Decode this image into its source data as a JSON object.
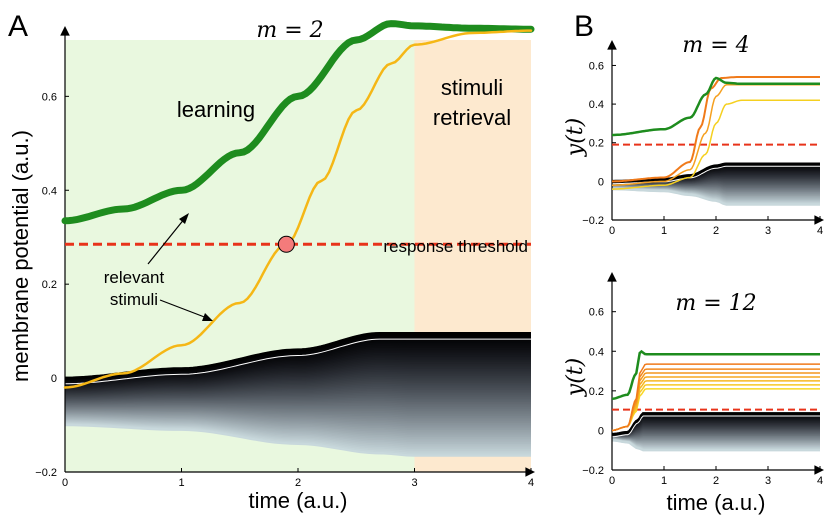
{
  "chart_data": [
    {
      "id": "A",
      "type": "line",
      "panel_label": "A",
      "title": "m = 2",
      "xlabel": "time (a.u.)",
      "ylabel": "membrane potential (a.u.)",
      "xlim": [
        0,
        4
      ],
      "ylim": [
        -0.2,
        0.72
      ],
      "xticks": [
        "0",
        "1",
        "2",
        "3",
        "4"
      ],
      "yticks": [
        "−0.2",
        "0",
        "0.2",
        "0.4",
        "0.6"
      ],
      "regions": [
        {
          "name": "learning",
          "label": "learning",
          "x_range": [
            0,
            3
          ],
          "color": "#e9f8df"
        },
        {
          "name": "stimuli retrieval",
          "label": "stimuli\nretrieval",
          "x_range": [
            3,
            4
          ],
          "color": "#fde9cf"
        }
      ],
      "threshold": {
        "value": 0.285,
        "label": "response threshold",
        "color": "#e8331a"
      },
      "crossing_point": {
        "x": 1.9,
        "y": 0.285
      },
      "annotation": {
        "label": "relevant\nstimuli"
      },
      "series": [
        {
          "name": "green relevant stimulus",
          "color": "#1e8c1e",
          "width": 7,
          "x": [
            0,
            0.5,
            1,
            1.5,
            2,
            2.5,
            2.8,
            3,
            3.5,
            4
          ],
          "y": [
            0.335,
            0.36,
            0.4,
            0.48,
            0.6,
            0.72,
            0.755,
            0.75,
            0.745,
            0.743
          ]
        },
        {
          "name": "yellow relevant stimulus",
          "color": "#f5b716",
          "width": 2.5,
          "x": [
            0,
            0.5,
            1,
            1.5,
            1.9,
            2.2,
            2.5,
            2.8,
            3,
            3.5,
            4
          ],
          "y": [
            -0.02,
            0.01,
            0.07,
            0.16,
            0.285,
            0.42,
            0.57,
            0.67,
            0.71,
            0.735,
            0.74
          ]
        },
        {
          "name": "background stimuli (top)",
          "color": "#000000",
          "width": 2,
          "x": [
            0,
            1,
            2,
            2.7,
            3,
            4
          ],
          "y": [
            0.0,
            0.02,
            0.06,
            0.095,
            0.095,
            0.095
          ]
        },
        {
          "name": "background stimuli (bottom)",
          "color": "#c8d8dc",
          "width": 2,
          "x": [
            0,
            1,
            2,
            2.7,
            3,
            4
          ],
          "y": [
            -0.1,
            -0.11,
            -0.14,
            -0.16,
            -0.165,
            -0.165
          ]
        }
      ]
    },
    {
      "id": "B_top",
      "type": "line",
      "panel_label": "B",
      "title": "m = 4",
      "xlabel": "",
      "ylabel": "y(t)",
      "xlim": [
        0,
        4
      ],
      "ylim": [
        -0.2,
        0.68
      ],
      "xticks": [
        "0",
        "1",
        "2",
        "3",
        "4"
      ],
      "yticks": [
        "−0.2",
        "0",
        "0.2",
        "0.4",
        "0.6"
      ],
      "threshold": {
        "value": 0.19,
        "color": "#e8331a"
      },
      "series": [
        {
          "name": "green",
          "color": "#1e8c1e",
          "width": 2.5,
          "x": [
            0,
            1,
            1.5,
            1.8,
            2,
            2.2,
            2.5,
            4
          ],
          "y": [
            0.24,
            0.27,
            0.33,
            0.45,
            0.535,
            0.51,
            0.505,
            0.505
          ]
        },
        {
          "name": "orange",
          "color": "#f07a1a",
          "width": 2,
          "x": [
            0,
            1,
            1.5,
            1.7,
            1.9,
            2.1,
            2.4,
            4
          ],
          "y": [
            0.0,
            0.02,
            0.1,
            0.28,
            0.48,
            0.535,
            0.54,
            0.54
          ]
        },
        {
          "name": "amber",
          "color": "#f5a020",
          "width": 1.5,
          "x": [
            0,
            1,
            1.5,
            1.8,
            2,
            2.2,
            2.5,
            4
          ],
          "y": [
            -0.02,
            0.0,
            0.06,
            0.25,
            0.44,
            0.5,
            0.5,
            0.5
          ]
        },
        {
          "name": "yellow",
          "color": "#f5d020",
          "width": 1.5,
          "x": [
            0,
            1,
            1.5,
            1.8,
            2,
            2.2,
            2.5,
            4
          ],
          "y": [
            -0.04,
            -0.02,
            0.02,
            0.14,
            0.3,
            0.4,
            0.42,
            0.42
          ]
        },
        {
          "name": "background top",
          "color": "#000000",
          "width": 2,
          "x": [
            0,
            1,
            1.5,
            2,
            2.2,
            4
          ],
          "y": [
            0.0,
            0.01,
            0.03,
            0.08,
            0.09,
            0.09
          ]
        },
        {
          "name": "background bottom",
          "color": "#c8d8dc",
          "width": 2,
          "x": [
            0,
            1,
            1.5,
            2,
            2.2,
            4
          ],
          "y": [
            -0.04,
            -0.05,
            -0.07,
            -0.1,
            -0.12,
            -0.12
          ]
        }
      ]
    },
    {
      "id": "B_bottom",
      "type": "line",
      "panel_label": "",
      "title": "m = 12",
      "xlabel": "time (a.u.)",
      "ylabel": "y(t)",
      "xlim": [
        0,
        4
      ],
      "ylim": [
        -0.2,
        0.75
      ],
      "xticks": [
        "0",
        "1",
        "2",
        "3",
        "4"
      ],
      "yticks": [
        "−0.2",
        "0",
        "0.2",
        "0.4",
        "0.6"
      ],
      "threshold": {
        "value": 0.105,
        "color": "#e8331a"
      },
      "series": [
        {
          "name": "green",
          "color": "#1e8c1e",
          "width": 2.5,
          "x": [
            0,
            0.3,
            0.45,
            0.55,
            0.65,
            1,
            4
          ],
          "y": [
            0.16,
            0.18,
            0.28,
            0.4,
            0.385,
            0.385,
            0.385
          ]
        },
        {
          "name": "stimulus 1",
          "color": "#f07a1a",
          "width": 1.5,
          "x": [
            0,
            0.3,
            0.45,
            0.55,
            0.65,
            4
          ],
          "y": [
            0.0,
            0.02,
            0.15,
            0.3,
            0.335,
            0.335
          ]
        },
        {
          "name": "stimulus 2",
          "color": "#f2881c",
          "width": 1.5,
          "x": [
            0,
            0.3,
            0.45,
            0.55,
            0.65,
            4
          ],
          "y": [
            0.0,
            0.02,
            0.14,
            0.28,
            0.31,
            0.31
          ]
        },
        {
          "name": "stimulus 3",
          "color": "#f3971e",
          "width": 1.5,
          "x": [
            0,
            0.3,
            0.45,
            0.55,
            0.65,
            4
          ],
          "y": [
            0.0,
            0.02,
            0.13,
            0.26,
            0.29,
            0.29
          ]
        },
        {
          "name": "stimulus 4",
          "color": "#f5a820",
          "width": 1.5,
          "x": [
            0,
            0.3,
            0.45,
            0.55,
            0.65,
            4
          ],
          "y": [
            0.0,
            0.02,
            0.12,
            0.24,
            0.27,
            0.27
          ]
        },
        {
          "name": "stimulus 5",
          "color": "#f6b822",
          "width": 1.5,
          "x": [
            0,
            0.3,
            0.45,
            0.55,
            0.65,
            4
          ],
          "y": [
            0.0,
            0.02,
            0.11,
            0.22,
            0.25,
            0.25
          ]
        },
        {
          "name": "stimulus 6",
          "color": "#f7c824",
          "width": 1.5,
          "x": [
            0,
            0.3,
            0.45,
            0.55,
            0.65,
            4
          ],
          "y": [
            0.0,
            0.02,
            0.1,
            0.2,
            0.23,
            0.23
          ]
        },
        {
          "name": "stimulus 7",
          "color": "#f8d726",
          "width": 1.5,
          "x": [
            0,
            0.3,
            0.45,
            0.55,
            0.65,
            4
          ],
          "y": [
            0.0,
            0.02,
            0.09,
            0.18,
            0.21,
            0.21
          ]
        },
        {
          "name": "background top",
          "color": "#000000",
          "width": 2,
          "x": [
            0,
            0.3,
            0.5,
            0.6,
            4
          ],
          "y": [
            -0.02,
            -0.01,
            0.05,
            0.085,
            0.085
          ]
        },
        {
          "name": "background bottom",
          "color": "#c8d8dc",
          "width": 2,
          "x": [
            0,
            0.3,
            0.5,
            0.6,
            4
          ],
          "y": [
            -0.05,
            -0.06,
            -0.09,
            -0.1,
            -0.1
          ]
        }
      ]
    }
  ]
}
